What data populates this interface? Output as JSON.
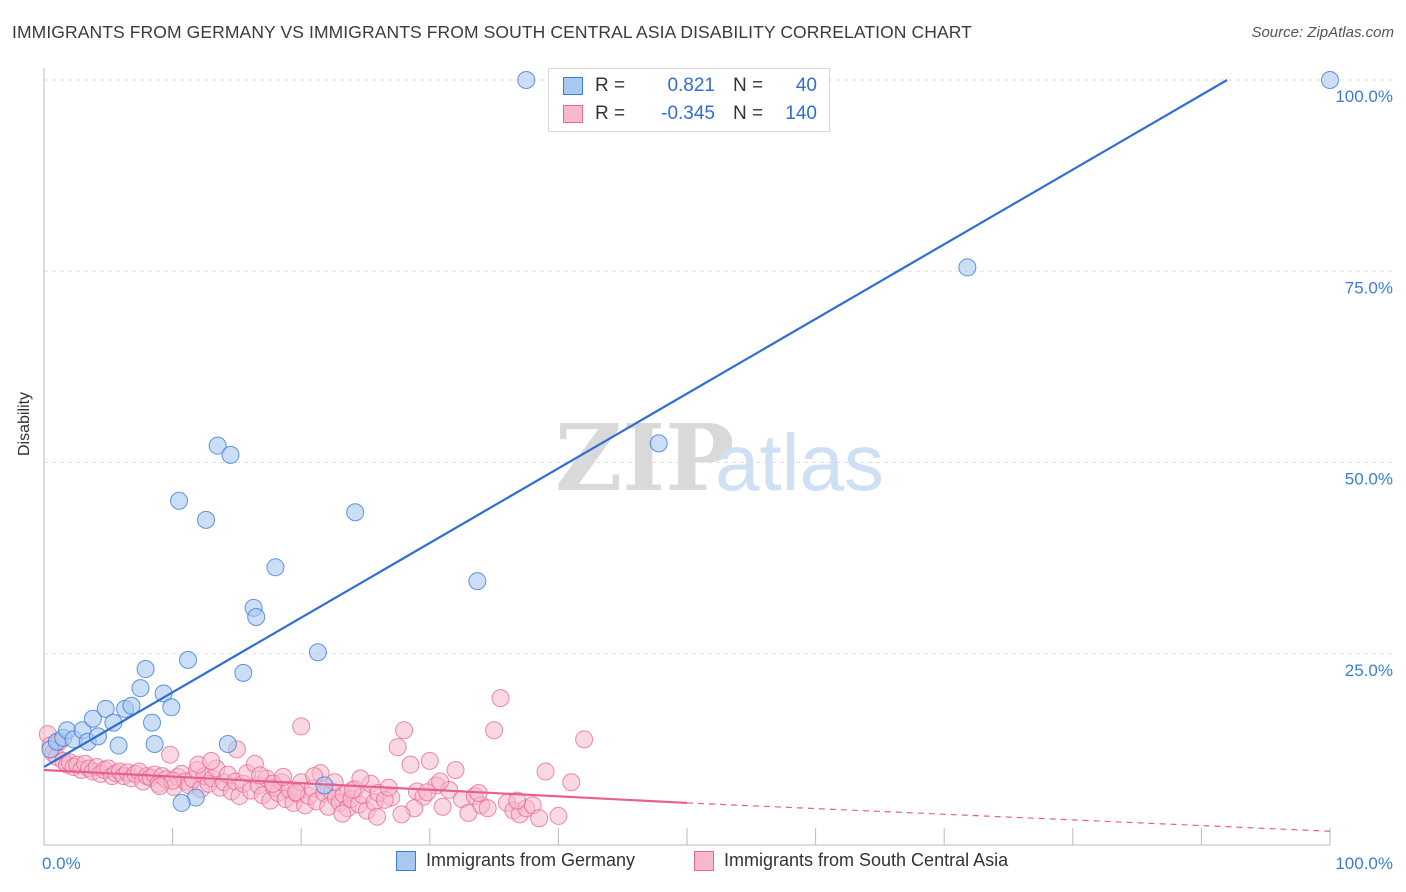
{
  "title": "IMMIGRANTS FROM GERMANY VS IMMIGRANTS FROM SOUTH CENTRAL ASIA DISABILITY CORRELATION CHART",
  "source": "Source: ZipAtlas.com",
  "watermark": {
    "zip": "ZIP",
    "atlas": "atlas"
  },
  "colors": {
    "blue": "#3b7dd8",
    "blue_fill": "#a9c8f0",
    "pink": "#e8668f",
    "pink_fill": "#f6b8cb",
    "axis_tick_text": "#3b7dd8"
  },
  "legend": {
    "series": [
      {
        "r_label": "R =",
        "r_value": "0.821",
        "n_label": "N =",
        "n_value": "40"
      },
      {
        "r_label": "R =",
        "r_value": "-0.345",
        "n_label": "N =",
        "n_value": "140"
      }
    ]
  },
  "chart_data": {
    "type": "scatter",
    "title": "IMMIGRANTS FROM GERMANY VS IMMIGRANTS FROM SOUTH CENTRAL ASIA DISABILITY CORRELATION CHART",
    "xlabel": "",
    "ylabel": "Disability",
    "xlim": [
      0,
      100
    ],
    "ylim": [
      0,
      100
    ],
    "x_tick_labels": [
      "0.0%",
      "100.0%"
    ],
    "y_tick_labels": [
      "100.0%",
      "75.0%",
      "50.0%",
      "25.0%"
    ],
    "y_ticks": [
      100,
      75,
      50,
      25
    ],
    "grid": true,
    "legend_position": "bottom",
    "series": [
      {
        "name": "Immigrants from Germany",
        "color": "#3b7dd8",
        "trend": {
          "x0": 0,
          "y0": 10.2,
          "x1": 92,
          "y1": 100
        },
        "points": [
          [
            0.5,
            12.5
          ],
          [
            1.0,
            13.5
          ],
          [
            1.5,
            14.0
          ],
          [
            1.8,
            15.0
          ],
          [
            2.3,
            13.8
          ],
          [
            3.0,
            15.0
          ],
          [
            3.4,
            13.5
          ],
          [
            3.8,
            16.5
          ],
          [
            4.2,
            14.2
          ],
          [
            4.8,
            17.8
          ],
          [
            5.4,
            16.0
          ],
          [
            5.8,
            13.0
          ],
          [
            6.3,
            17.8
          ],
          [
            6.8,
            18.2
          ],
          [
            7.5,
            20.5
          ],
          [
            7.9,
            23.0
          ],
          [
            8.4,
            16.0
          ],
          [
            8.6,
            13.2
          ],
          [
            9.3,
            19.8
          ],
          [
            9.9,
            18.0
          ],
          [
            10.5,
            45.0
          ],
          [
            11.2,
            24.2
          ],
          [
            11.8,
            6.2
          ],
          [
            12.6,
            42.5
          ],
          [
            13.5,
            52.2
          ],
          [
            14.3,
            13.2
          ],
          [
            14.5,
            51.0
          ],
          [
            15.5,
            22.5
          ],
          [
            16.3,
            31.0
          ],
          [
            16.5,
            29.8
          ],
          [
            18.0,
            36.3
          ],
          [
            21.3,
            25.2
          ],
          [
            21.8,
            7.8
          ],
          [
            24.2,
            43.5
          ],
          [
            10.7,
            5.5
          ],
          [
            33.7,
            34.5
          ],
          [
            37.5,
            100.0
          ],
          [
            47.8,
            52.5
          ],
          [
            71.8,
            75.5
          ],
          [
            100.0,
            100.0
          ]
        ]
      },
      {
        "name": "Immigrants from South Central Asia",
        "color": "#e8668f",
        "trend": {
          "x0": 0,
          "y0": 9.8,
          "x1": 50,
          "y1": 5.5,
          "dash_to_x": 100,
          "dash_to_y": 1.8
        },
        "points": [
          [
            0.3,
            14.5
          ],
          [
            0.5,
            13.0
          ],
          [
            0.7,
            12.0
          ],
          [
            1.0,
            11.5
          ],
          [
            1.2,
            13.5
          ],
          [
            1.5,
            11.0
          ],
          [
            1.8,
            10.5
          ],
          [
            2.0,
            10.8
          ],
          [
            2.3,
            10.2
          ],
          [
            2.6,
            10.5
          ],
          [
            2.9,
            9.8
          ],
          [
            3.2,
            10.6
          ],
          [
            3.5,
            10.0
          ],
          [
            3.8,
            9.6
          ],
          [
            4.1,
            10.2
          ],
          [
            4.4,
            9.3
          ],
          [
            4.7,
            9.8
          ],
          [
            5.0,
            10.0
          ],
          [
            5.3,
            9.0
          ],
          [
            5.6,
            9.4
          ],
          [
            5.9,
            9.6
          ],
          [
            6.2,
            9.0
          ],
          [
            6.5,
            9.5
          ],
          [
            6.8,
            8.7
          ],
          [
            7.1,
            9.3
          ],
          [
            7.4,
            9.6
          ],
          [
            7.7,
            8.3
          ],
          [
            8.0,
            9.0
          ],
          [
            8.3,
            8.8
          ],
          [
            8.6,
            9.2
          ],
          [
            8.9,
            8.0
          ],
          [
            9.2,
            9.0
          ],
          [
            9.5,
            8.6
          ],
          [
            9.8,
            11.8
          ],
          [
            10.1,
            7.6
          ],
          [
            10.4,
            8.9
          ],
          [
            10.7,
            9.3
          ],
          [
            11.0,
            8.3
          ],
          [
            11.3,
            7.8
          ],
          [
            11.6,
            8.6
          ],
          [
            11.9,
            9.8
          ],
          [
            12.2,
            7.3
          ],
          [
            12.5,
            9.0
          ],
          [
            12.8,
            8.0
          ],
          [
            13.1,
            8.7
          ],
          [
            13.4,
            10.0
          ],
          [
            13.7,
            7.5
          ],
          [
            14.0,
            8.2
          ],
          [
            14.3,
            9.2
          ],
          [
            14.6,
            7.0
          ],
          [
            14.9,
            8.3
          ],
          [
            15.2,
            6.4
          ],
          [
            15.5,
            8.0
          ],
          [
            15.8,
            9.4
          ],
          [
            16.1,
            7.1
          ],
          [
            16.4,
            10.6
          ],
          [
            16.7,
            7.8
          ],
          [
            17.0,
            6.5
          ],
          [
            17.3,
            8.7
          ],
          [
            17.6,
            5.8
          ],
          [
            17.9,
            7.5
          ],
          [
            18.2,
            6.8
          ],
          [
            18.5,
            8.2
          ],
          [
            18.8,
            6.0
          ],
          [
            19.1,
            7.2
          ],
          [
            19.4,
            5.5
          ],
          [
            19.7,
            6.7
          ],
          [
            20.0,
            8.2
          ],
          [
            20.3,
            5.2
          ],
          [
            20.6,
            6.4
          ],
          [
            20.9,
            7.4
          ],
          [
            21.2,
            5.7
          ],
          [
            21.5,
            9.4
          ],
          [
            21.8,
            6.8
          ],
          [
            22.1,
            5.0
          ],
          [
            22.4,
            7.0
          ],
          [
            22.7,
            6.2
          ],
          [
            23.0,
            5.5
          ],
          [
            23.3,
            6.6
          ],
          [
            23.6,
            4.8
          ],
          [
            23.9,
            6.0
          ],
          [
            24.2,
            7.3
          ],
          [
            24.5,
            5.3
          ],
          [
            24.8,
            6.5
          ],
          [
            25.1,
            4.5
          ],
          [
            25.4,
            8.0
          ],
          [
            25.7,
            5.6
          ],
          [
            26.0,
            6.8
          ],
          [
            27.0,
            6.2
          ],
          [
            27.5,
            12.8
          ],
          [
            28.0,
            15.0
          ],
          [
            28.5,
            10.5
          ],
          [
            29.0,
            7.0
          ],
          [
            29.5,
            6.3
          ],
          [
            30.0,
            11.0
          ],
          [
            30.5,
            7.8
          ],
          [
            31.0,
            5.0
          ],
          [
            31.5,
            7.2
          ],
          [
            32.0,
            9.8
          ],
          [
            32.5,
            6.0
          ],
          [
            33.0,
            4.2
          ],
          [
            33.5,
            6.4
          ],
          [
            34.0,
            5.2
          ],
          [
            34.5,
            4.8
          ],
          [
            35.0,
            15.0
          ],
          [
            35.5,
            19.2
          ],
          [
            36.0,
            5.5
          ],
          [
            36.5,
            4.5
          ],
          [
            37.0,
            4.0
          ],
          [
            37.5,
            4.8
          ],
          [
            38.0,
            5.2
          ],
          [
            38.5,
            3.5
          ],
          [
            39.0,
            9.6
          ],
          [
            40.0,
            3.8
          ],
          [
            41.0,
            8.2
          ],
          [
            42.0,
            13.8
          ],
          [
            15.0,
            12.5
          ],
          [
            12.0,
            10.5
          ],
          [
            13.0,
            11.0
          ],
          [
            10.0,
            8.4
          ],
          [
            9.0,
            7.7
          ],
          [
            20.0,
            15.5
          ],
          [
            24.0,
            7.2
          ],
          [
            26.5,
            5.9
          ],
          [
            28.8,
            4.8
          ],
          [
            30.8,
            8.3
          ],
          [
            33.8,
            6.8
          ],
          [
            36.8,
            5.8
          ],
          [
            16.8,
            9.1
          ],
          [
            17.8,
            8.0
          ],
          [
            18.6,
            8.9
          ],
          [
            19.6,
            6.9
          ],
          [
            21.0,
            9.0
          ],
          [
            22.6,
            8.2
          ],
          [
            23.2,
            4.1
          ],
          [
            24.6,
            8.7
          ],
          [
            25.9,
            3.7
          ],
          [
            26.8,
            7.5
          ],
          [
            27.8,
            4.0
          ],
          [
            29.8,
            6.9
          ]
        ]
      }
    ]
  },
  "bottom_legend": [
    "Immigrants from Germany",
    "Immigrants from South Central Asia"
  ]
}
